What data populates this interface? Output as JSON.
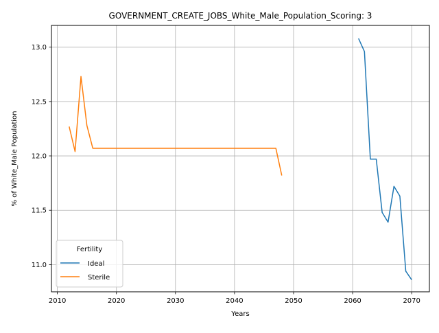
{
  "chart_data": {
    "type": "line",
    "title": "GOVERNMENT_CREATE_JOBS_White_Male_Population_Scoring: 3",
    "xlabel": "Years",
    "ylabel": "% of White_Male Population",
    "xlim": [
      2009,
      2073
    ],
    "ylim": [
      10.75,
      13.2
    ],
    "xticks": [
      2010,
      2020,
      2030,
      2040,
      2050,
      2060,
      2070
    ],
    "yticks": [
      11.0,
      11.5,
      12.0,
      12.5,
      13.0
    ],
    "xtick_labels": [
      "2010",
      "2020",
      "2030",
      "2040",
      "2050",
      "2060",
      "2070"
    ],
    "ytick_labels": [
      "11.0",
      "11.5",
      "12.0",
      "12.5",
      "13.0"
    ],
    "grid": true,
    "legend": {
      "title": "Fertility",
      "placement": "lower-left"
    },
    "series": [
      {
        "name": "Ideal",
        "color": "#1f77b4",
        "x": [
          2061,
          2062,
          2063,
          2064,
          2065,
          2066,
          2067,
          2068,
          2069,
          2070
        ],
        "y": [
          13.08,
          12.96,
          11.97,
          11.97,
          11.48,
          11.39,
          11.72,
          11.63,
          10.94,
          10.86
        ]
      },
      {
        "name": "Sterile",
        "color": "#ff7f0e",
        "x": [
          2012,
          2013,
          2014,
          2015,
          2016,
          2017,
          2018,
          2019,
          2020,
          2025,
          2030,
          2035,
          2040,
          2045,
          2046,
          2047,
          2048
        ],
        "y": [
          12.27,
          12.04,
          12.73,
          12.28,
          12.07,
          12.07,
          12.07,
          12.07,
          12.07,
          12.07,
          12.07,
          12.07,
          12.07,
          12.07,
          12.07,
          12.07,
          11.82
        ]
      }
    ]
  }
}
